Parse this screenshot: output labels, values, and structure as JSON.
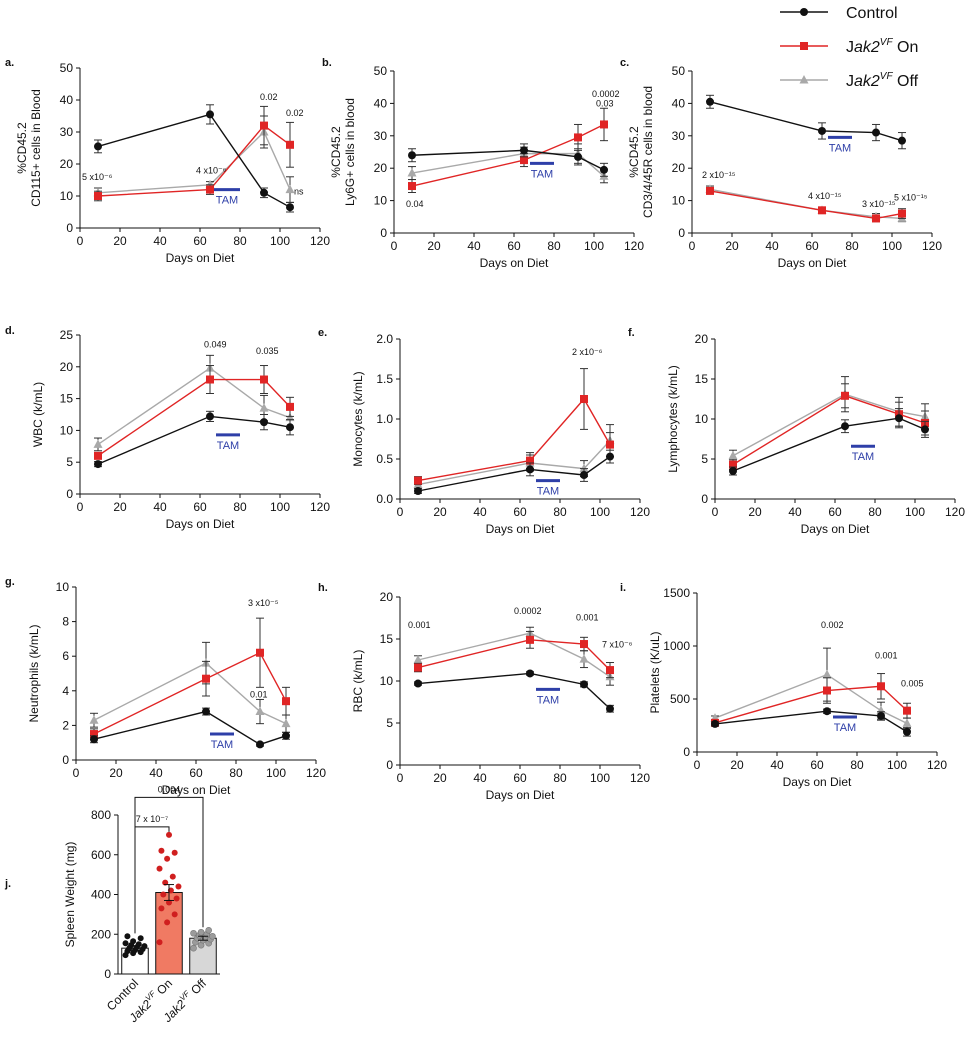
{
  "colors": {
    "control": "#111111",
    "on": "#e02525",
    "off": "#a9a9a9",
    "tam": "#2e3fa8",
    "on_bar": "#f07a63",
    "off_bar": "#d7d7d7"
  },
  "legend": [
    {
      "key": "control",
      "label": "Control",
      "sup": "",
      "suffix": ""
    },
    {
      "key": "on",
      "label": "Jak2",
      "sup": "VF",
      "suffix": " On"
    },
    {
      "key": "off",
      "label": "Jak2",
      "sup": "VF",
      "suffix": " Off"
    }
  ],
  "chart_data": [
    {
      "id": "a",
      "panel_label": "a.",
      "type": "line",
      "ylabel": [
        "%CD45.2",
        "CD115+ cells in Blood"
      ],
      "xlabel": "Days on Diet",
      "xlim": [
        0,
        120
      ],
      "xticks": [
        0,
        20,
        40,
        60,
        80,
        100,
        120
      ],
      "ylim": [
        0,
        50
      ],
      "yticks": [
        0,
        10,
        20,
        30,
        40,
        50
      ],
      "x": [
        9,
        65,
        92,
        105
      ],
      "series": [
        {
          "key": "control",
          "name": "Control",
          "values": [
            25.5,
            35.5,
            11,
            6.5
          ],
          "err": [
            2,
            3,
            1.5,
            1.5
          ]
        },
        {
          "key": "on",
          "name": "Jak2VF On",
          "values": [
            10,
            12,
            32,
            26
          ],
          "err": [
            1.5,
            1.5,
            6,
            7
          ]
        },
        {
          "key": "off",
          "name": "Jak2VF Off",
          "values": [
            11,
            13.5,
            30,
            12
          ],
          "err": [
            1.5,
            1,
            5,
            4
          ]
        }
      ],
      "tam": {
        "x1": 67,
        "x2": 80,
        "y": 12,
        "label": "TAM"
      },
      "annotations": [
        {
          "text": "5 x10⁻⁶",
          "x": 1,
          "y": 15
        },
        {
          "text": "4 x10⁻⁶",
          "x": 58,
          "y": 17
        },
        {
          "text": "0.02",
          "x": 90,
          "y": 40
        },
        {
          "text": "0.02",
          "x": 103,
          "y": 35
        },
        {
          "text": "ns",
          "x": 107,
          "y": 10.5
        }
      ]
    },
    {
      "id": "b",
      "panel_label": "b.",
      "type": "line",
      "ylabel": [
        "%CD45.2",
        "Ly6G+ cells in blood"
      ],
      "xlabel": "Days on Diet",
      "xlim": [
        0,
        120
      ],
      "xticks": [
        0,
        20,
        40,
        60,
        80,
        100,
        120
      ],
      "ylim": [
        0,
        50
      ],
      "yticks": [
        0,
        10,
        20,
        30,
        40,
        50
      ],
      "x": [
        9,
        65,
        92,
        105
      ],
      "series": [
        {
          "key": "control",
          "name": "Control",
          "values": [
            24,
            25.5,
            23.5,
            19.5
          ],
          "err": [
            2,
            2,
            2.5,
            2
          ]
        },
        {
          "key": "on",
          "name": "Jak2VF On",
          "values": [
            14.5,
            22.5,
            29.5,
            33.5
          ],
          "err": [
            2,
            2,
            4,
            5
          ]
        },
        {
          "key": "off",
          "name": "Jak2VF Off",
          "values": [
            18.5,
            24.5,
            24.5,
            17.5
          ],
          "err": [
            2,
            2,
            3,
            2
          ]
        }
      ],
      "tam": {
        "x1": 68,
        "x2": 80,
        "y": 21.5,
        "label": "TAM"
      },
      "annotations": [
        {
          "text": "0.04",
          "x": 6,
          "y": 8
        },
        {
          "text": "0.0002",
          "x": 99,
          "y": 42
        },
        {
          "text": "0.03",
          "x": 101,
          "y": 39
        }
      ]
    },
    {
      "id": "c",
      "panel_label": "c.",
      "type": "line",
      "ylabel": [
        "%CD45.2",
        "CD3/4/45R cells in blood"
      ],
      "xlabel": "Days on Diet",
      "xlim": [
        0,
        120
      ],
      "xticks": [
        0,
        20,
        40,
        60,
        80,
        100,
        120
      ],
      "ylim": [
        0,
        50
      ],
      "yticks": [
        0,
        10,
        20,
        30,
        40,
        50
      ],
      "x": [
        9,
        65,
        92,
        105
      ],
      "series": [
        {
          "key": "control",
          "name": "Control",
          "values": [
            40.5,
            31.5,
            31,
            28.5
          ],
          "err": [
            2,
            2.5,
            2.5,
            2.5
          ]
        },
        {
          "key": "on",
          "name": "Jak2VF On",
          "values": [
            13,
            7,
            4.5,
            6
          ],
          "err": [
            1,
            0.5,
            1,
            1.5
          ]
        },
        {
          "key": "off",
          "name": "Jak2VF Off",
          "values": [
            13.5,
            7,
            5,
            4.5
          ],
          "err": [
            1,
            0.5,
            1,
            1
          ]
        }
      ],
      "tam": {
        "x1": 68,
        "x2": 80,
        "y": 29.5,
        "label": "TAM"
      },
      "annotations": [
        {
          "text": "2 x10⁻¹⁵",
          "x": 5,
          "y": 17
        },
        {
          "text": "4 x10⁻¹⁵",
          "x": 58,
          "y": 10.5
        },
        {
          "text": "3 x10⁻¹⁵",
          "x": 85,
          "y": 8
        },
        {
          "text": "5 x10⁻¹⁵",
          "x": 101,
          "y": 10
        }
      ]
    },
    {
      "id": "d",
      "panel_label": "d.",
      "type": "line",
      "ylabel": [
        "WBC (k/mL)"
      ],
      "xlabel": "Days on Diet",
      "xlim": [
        0,
        120
      ],
      "xticks": [
        0,
        20,
        40,
        60,
        80,
        100,
        120
      ],
      "ylim": [
        0,
        25
      ],
      "yticks": [
        0,
        5,
        10,
        15,
        20,
        25
      ],
      "x": [
        9,
        65,
        92,
        105
      ],
      "series": [
        {
          "key": "control",
          "name": "Control",
          "values": [
            4.7,
            12.2,
            11.3,
            10.5
          ],
          "err": [
            0.4,
            0.8,
            1.2,
            1.2
          ]
        },
        {
          "key": "on",
          "name": "Jak2VF On",
          "values": [
            6,
            18,
            18,
            13.7
          ],
          "err": [
            0.5,
            2.2,
            2.2,
            1.5
          ]
        },
        {
          "key": "off",
          "name": "Jak2VF Off",
          "values": [
            7.8,
            19.8,
            13.5,
            12
          ],
          "err": [
            1,
            2,
            2,
            1.5
          ]
        }
      ],
      "tam": {
        "x1": 68,
        "x2": 80,
        "y": 9.3,
        "label": "TAM"
      },
      "annotations": [
        {
          "text": "0.049",
          "x": 62,
          "y": 23
        },
        {
          "text": "0.035",
          "x": 88,
          "y": 22
        }
      ]
    },
    {
      "id": "e",
      "panel_label": "e.",
      "type": "line",
      "ylabel": [
        "Monocytes (k/mL)"
      ],
      "xlabel": "Days on Diet",
      "xlim": [
        0,
        120
      ],
      "xticks": [
        0,
        20,
        40,
        60,
        80,
        100,
        120
      ],
      "ylim": [
        0,
        2.0
      ],
      "yticks": [
        0.0,
        0.5,
        1.0,
        1.5,
        2.0
      ],
      "ytick_labels": [
        "0.0",
        "0.5",
        "1.0",
        "1.5",
        "2.0"
      ],
      "x": [
        9,
        65,
        92,
        105
      ],
      "series": [
        {
          "key": "control",
          "name": "Control",
          "values": [
            0.1,
            0.37,
            0.3,
            0.53
          ],
          "err": [
            0.03,
            0.08,
            0.08,
            0.08
          ]
        },
        {
          "key": "on",
          "name": "Jak2VF On",
          "values": [
            0.23,
            0.48,
            1.25,
            0.68
          ],
          "err": [
            0.05,
            0.1,
            0.38,
            0.15
          ]
        },
        {
          "key": "off",
          "name": "Jak2VF Off",
          "values": [
            0.18,
            0.45,
            0.38,
            0.73
          ],
          "err": [
            0.05,
            0.1,
            0.1,
            0.2
          ]
        }
      ],
      "tam": {
        "x1": 68,
        "x2": 80,
        "y": 0.23,
        "label": "TAM"
      },
      "annotations": [
        {
          "text": "2 x10⁻⁶",
          "x": 86,
          "y": 1.8
        }
      ]
    },
    {
      "id": "f",
      "panel_label": "f.",
      "type": "line",
      "ylabel": [
        "Lymphocytes (k/mL)"
      ],
      "xlabel": "Days on Diet",
      "xlim": [
        0,
        120
      ],
      "xticks": [
        0,
        20,
        40,
        60,
        80,
        100,
        120
      ],
      "ylim": [
        0,
        20
      ],
      "yticks": [
        0,
        5,
        10,
        15,
        20
      ],
      "x": [
        9,
        65,
        92,
        105
      ],
      "series": [
        {
          "key": "control",
          "name": "Control",
          "values": [
            3.5,
            9.1,
            10.1,
            8.7
          ],
          "err": [
            0.5,
            0.8,
            1.2,
            1
          ]
        },
        {
          "key": "on",
          "name": "Jak2VF On",
          "values": [
            4.3,
            12.9,
            10.6,
            9.5
          ],
          "err": [
            0.6,
            1.5,
            1.5,
            1.5
          ]
        },
        {
          "key": "off",
          "name": "Jak2VF Off",
          "values": [
            5.4,
            13.1,
            10.9,
            10.3
          ],
          "err": [
            0.7,
            2.2,
            1.8,
            1.6
          ]
        }
      ],
      "tam": {
        "x1": 68,
        "x2": 80,
        "y": 6.6,
        "label": "TAM"
      },
      "annotations": []
    },
    {
      "id": "g",
      "panel_label": "g.",
      "type": "line",
      "ylabel": [
        "Neutrophils (k/mL)"
      ],
      "xlabel": "Days on Diet",
      "xlim": [
        0,
        120
      ],
      "xticks": [
        0,
        20,
        40,
        60,
        80,
        100,
        120
      ],
      "ylim": [
        0,
        10
      ],
      "yticks": [
        0,
        2,
        4,
        6,
        8,
        10
      ],
      "x": [
        9,
        65,
        92,
        105
      ],
      "series": [
        {
          "key": "control",
          "name": "Control",
          "values": [
            1.2,
            2.8,
            0.9,
            1.4
          ],
          "err": [
            0.2,
            0.2,
            0.1,
            0.2
          ]
        },
        {
          "key": "on",
          "name": "Jak2VF On",
          "values": [
            1.5,
            4.7,
            6.2,
            3.4
          ],
          "err": [
            0.3,
            1,
            2,
            0.8
          ]
        },
        {
          "key": "off",
          "name": "Jak2VF Off",
          "values": [
            2.3,
            5.6,
            2.8,
            2.1
          ],
          "err": [
            0.4,
            1.2,
            0.7,
            0.5
          ]
        }
      ],
      "tam": {
        "x1": 67,
        "x2": 79,
        "y": 1.5,
        "label": "TAM"
      },
      "annotations": [
        {
          "text": "3 x10⁻⁵",
          "x": 86,
          "y": 8.9
        },
        {
          "text": "0.01",
          "x": 87,
          "y": 3.6
        }
      ]
    },
    {
      "id": "h",
      "panel_label": "h.",
      "type": "line",
      "ylabel": [
        "RBC (k/mL)"
      ],
      "xlabel": "Days on Diet",
      "xlim": [
        0,
        120
      ],
      "xticks": [
        0,
        20,
        40,
        60,
        80,
        100,
        120
      ],
      "ylim": [
        0,
        20
      ],
      "yticks": [
        0,
        5,
        10,
        15,
        20
      ],
      "x": [
        9,
        65,
        92,
        105
      ],
      "series": [
        {
          "key": "control",
          "name": "Control",
          "values": [
            9.7,
            10.9,
            9.6,
            6.7
          ],
          "err": [
            0.2,
            0.2,
            0.3,
            0.4
          ]
        },
        {
          "key": "on",
          "name": "Jak2VF On",
          "values": [
            11.6,
            14.9,
            14.4,
            11.3
          ],
          "err": [
            0.5,
            1,
            0.8,
            0.9
          ]
        },
        {
          "key": "off",
          "name": "Jak2VF Off",
          "values": [
            12.5,
            15.7,
            12.6,
            10.5
          ],
          "err": [
            0.5,
            0.7,
            1,
            1
          ]
        }
      ],
      "tam": {
        "x1": 68,
        "x2": 80,
        "y": 9,
        "label": "TAM"
      },
      "annotations": [
        {
          "text": "0.001",
          "x": 4,
          "y": 16.3
        },
        {
          "text": "0.0002",
          "x": 57,
          "y": 18
        },
        {
          "text": "0.001",
          "x": 88,
          "y": 17.2
        },
        {
          "text": "7 x10⁻⁶",
          "x": 101,
          "y": 14
        }
      ]
    },
    {
      "id": "i",
      "panel_label": "i.",
      "type": "line",
      "ylabel": [
        "Platelets (K/uL)"
      ],
      "xlabel": "Days on Diet",
      "xlim": [
        0,
        120
      ],
      "xticks": [
        0,
        20,
        40,
        60,
        80,
        100,
        120
      ],
      "ylim": [
        0,
        1500
      ],
      "yticks": [
        0,
        500,
        1000,
        1500
      ],
      "x": [
        9,
        65,
        92,
        105
      ],
      "series": [
        {
          "key": "control",
          "name": "Control",
          "values": [
            265,
            385,
            340,
            190
          ],
          "err": [
            20,
            20,
            40,
            40
          ]
        },
        {
          "key": "on",
          "name": "Jak2VF On",
          "values": [
            275,
            580,
            620,
            390
          ],
          "err": [
            20,
            120,
            120,
            70
          ]
        },
        {
          "key": "off",
          "name": "Jak2VF Off",
          "values": [
            320,
            730,
            390,
            270
          ],
          "err": [
            20,
            250,
            80,
            50
          ]
        }
      ],
      "tam": {
        "x1": 68,
        "x2": 80,
        "y": 330,
        "label": "TAM"
      },
      "annotations": [
        {
          "text": "0.002",
          "x": 62,
          "y": 1170
        },
        {
          "text": "0.001",
          "x": 89,
          "y": 880
        },
        {
          "text": "0.005",
          "x": 102,
          "y": 620
        }
      ]
    },
    {
      "id": "j",
      "panel_label": "j.",
      "type": "bar",
      "ylabel": [
        "Spleen Weight (mg)"
      ],
      "ylim": [
        0,
        800
      ],
      "yticks": [
        0,
        200,
        400,
        600,
        800
      ],
      "categories": [
        {
          "key": "control",
          "label": "Control",
          "sup": "",
          "suffix": ""
        },
        {
          "key": "on",
          "label": "Jak2",
          "sup": "VF",
          "suffix": " On"
        },
        {
          "key": "off",
          "label": "Jak2",
          "sup": "VF",
          "suffix": " Off"
        }
      ],
      "values": [
        130,
        410,
        180
      ],
      "err": [
        12,
        40,
        10
      ],
      "points": [
        [
          95,
          105,
          110,
          115,
          120,
          125,
          130,
          135,
          140,
          145,
          150,
          155,
          165,
          180,
          190
        ],
        [
          160,
          260,
          300,
          330,
          360,
          380,
          400,
          420,
          440,
          460,
          490,
          530,
          580,
          610,
          620,
          700
        ],
        [
          130,
          145,
          155,
          160,
          170,
          175,
          180,
          185,
          190,
          195,
          200,
          205,
          210,
          220
        ]
      ],
      "brackets": [
        {
          "from": 0,
          "to": 1,
          "text": "7 x 10⁻⁷"
        },
        {
          "from": 0,
          "to": 2,
          "text": "0.004"
        }
      ]
    }
  ]
}
